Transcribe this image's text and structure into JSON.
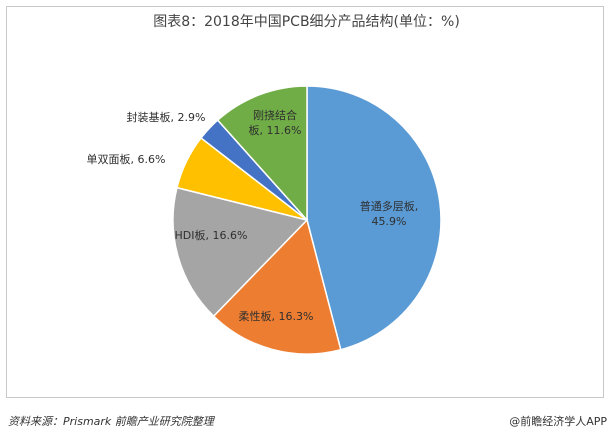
{
  "title": "图表8：2018年中国PCB细分产品结构(单位：%)",
  "source": "资料来源：Prismark 前瞻产业研究院整理",
  "brand": "@前瞻经济学人APP",
  "chart_data": {
    "type": "pie",
    "title": "图表8：2018年中国PCB细分产品结构(单位：%)",
    "unit": "%",
    "start_angle_deg": 0,
    "direction": "clockwise",
    "slices": [
      {
        "name": "普通多层板",
        "value": 45.9,
        "label": "普通多层板,\n45.9%",
        "color": "#5b9bd5"
      },
      {
        "name": "柔性板",
        "value": 16.3,
        "label": "柔性板, 16.3%",
        "color": "#ed7d31"
      },
      {
        "name": "HDI板",
        "value": 16.6,
        "label": "HDI板, 16.6%",
        "color": "#a5a5a5"
      },
      {
        "name": "单双面板",
        "value": 6.6,
        "label": "单双面板, 6.6%",
        "color": "#ffc000"
      },
      {
        "name": "封装基板",
        "value": 2.9,
        "label": "封装基板, 2.9%",
        "color": "#4472c4"
      },
      {
        "name": "刚挠结合板",
        "value": 11.6,
        "label": "刚挠结合\n板, 11.6%",
        "color": "#70ad47"
      }
    ]
  }
}
